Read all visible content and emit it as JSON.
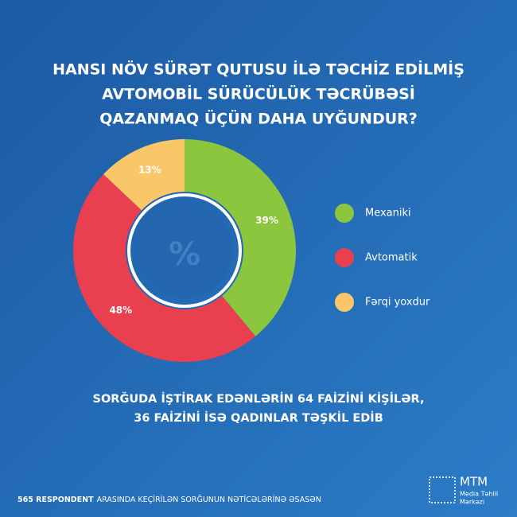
{
  "chart_data": {
    "type": "donut",
    "title": [
      "HANSI NÖV SÜRƏT QUTUSU İLƏ TƏCHİZ EDİLMİŞ",
      "AVTOMOBİL SÜRÜCÜLÜK TƏCRÜBƏSİ",
      "QAZANMAQ ÜÇÜN DAHA UYĞUNDUR?"
    ],
    "categories": [
      "Mexaniki",
      "Avtomatik",
      "Fərqi yoxdur"
    ],
    "values": [
      39,
      48,
      13
    ],
    "value_labels": [
      "39%",
      "48%",
      "13%"
    ],
    "colors": [
      "#8cc63f",
      "#e8404f",
      "#f9c76a"
    ],
    "center_label": "%",
    "note": [
      "SORĞUDA İŞTİRAK EDƏNLƏRİN 64 FAİZİNİ KİŞİLƏR,",
      "36 FAİZİNİ İSƏ QADINLAR TƏŞKİL EDİB"
    ]
  },
  "footer": {
    "source_bold": "565 RESPONDENT",
    "source_rest": "ARASINDA KEÇİRİLƏN SORĞUNUN NƏTİCƏLƏRİNƏ ƏSASƏN",
    "logo": {
      "name": "MTM",
      "line1": "Media Təhlil",
      "line2": "Mərkəzi"
    }
  }
}
